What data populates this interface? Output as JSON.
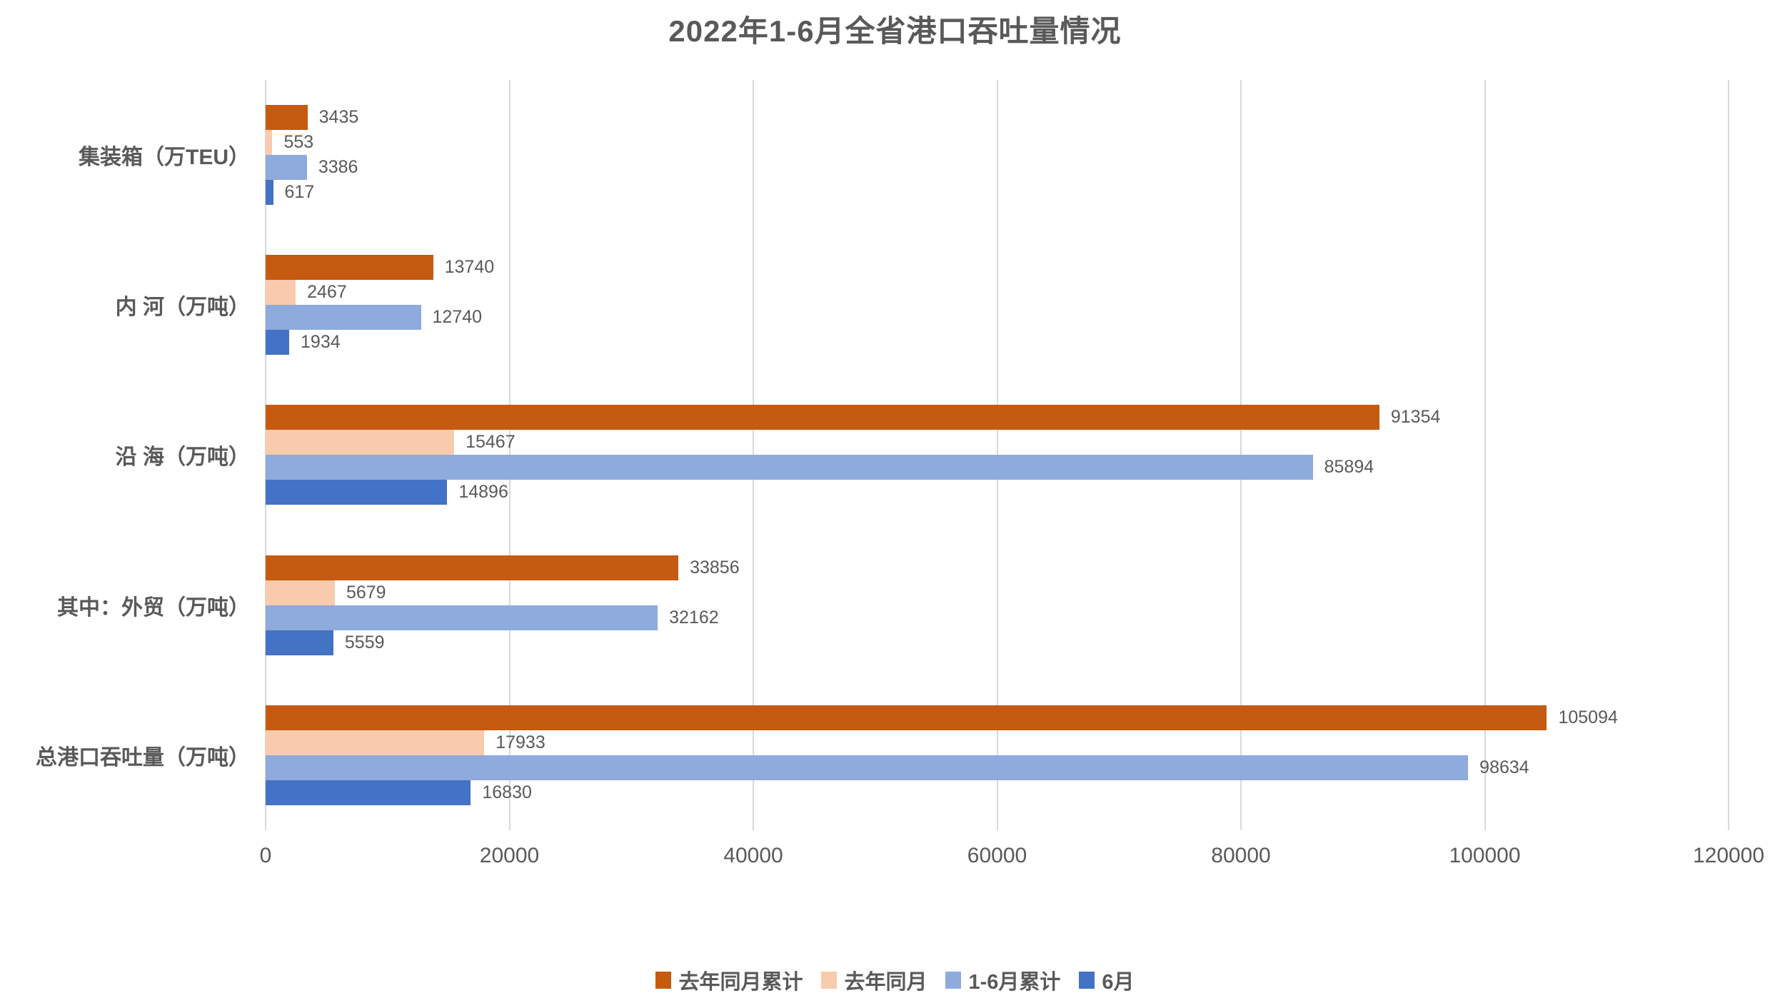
{
  "title": "2022年1-6月全省港口吞吐量情况",
  "text_color": "#595959",
  "gridline_color": "#d9d9d9",
  "chart_data": {
    "type": "bar",
    "orientation": "horizontal",
    "title": "2022年1-6月全省港口吞吐量情况",
    "categories": [
      "集装箱（万TEU）",
      "内 河（万吨）",
      "沿 海（万吨）",
      "其中：外贸（万吨）",
      "总港口吞吐量（万吨）"
    ],
    "series": [
      {
        "name": "去年同月累计",
        "color": "#C55A11",
        "values": [
          3435,
          13740,
          91354,
          33856,
          105094
        ]
      },
      {
        "name": "去年同月",
        "color": "#F8CBAD",
        "values": [
          553,
          2467,
          15467,
          5679,
          17933
        ]
      },
      {
        "name": "1-6月累计",
        "color": "#8FAADC",
        "values": [
          3386,
          12740,
          85894,
          32162,
          98634
        ]
      },
      {
        "name": "6月",
        "color": "#4472C4",
        "values": [
          617,
          1934,
          14896,
          5559,
          16830
        ]
      }
    ],
    "x_axis": {
      "min": 0,
      "max": 120000,
      "tick_interval": 20000,
      "ticks": [
        0,
        20000,
        40000,
        60000,
        80000,
        100000,
        120000
      ]
    },
    "value_labels": "outside-end",
    "grid": true,
    "legend_position": "bottom"
  }
}
